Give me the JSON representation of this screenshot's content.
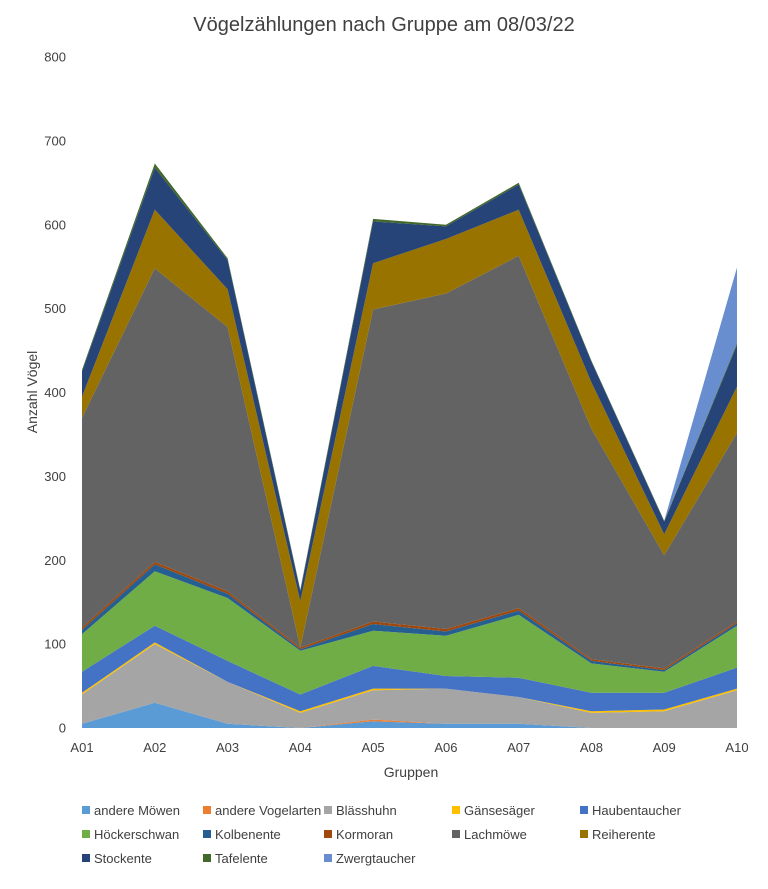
{
  "chart_data": {
    "type": "area",
    "stacked": true,
    "title": "Vögelzählungen nach Gruppe am 08/03/22",
    "xlabel": "Gruppen",
    "ylabel": "Anzahl Vögel",
    "ylim": [
      0,
      800
    ],
    "yticks": [
      "0",
      "100",
      "200",
      "300",
      "400",
      "500",
      "600",
      "700",
      "800"
    ],
    "categories": [
      "A01",
      "A02",
      "A03",
      "A04",
      "A05",
      "A06",
      "A07",
      "A08",
      "A09",
      "A10"
    ],
    "grid": false,
    "legend_position": "bottom",
    "series": [
      {
        "name": "andere Möwen",
        "color": "#5b9bd5",
        "values": [
          5,
          30,
          5,
          0,
          8,
          5,
          5,
          0,
          0,
          0
        ]
      },
      {
        "name": "andere Vogelarten",
        "color": "#ed7d31",
        "values": [
          0,
          0,
          0,
          0,
          2,
          0,
          0,
          0,
          0,
          0
        ]
      },
      {
        "name": "Blässhuhn",
        "color": "#a5a5a5",
        "values": [
          35,
          70,
          50,
          18,
          35,
          42,
          32,
          18,
          20,
          45
        ]
      },
      {
        "name": "Gänsesäger",
        "color": "#ffc000",
        "values": [
          2,
          2,
          0,
          2,
          2,
          0,
          0,
          2,
          2,
          2
        ]
      },
      {
        "name": "Haubentaucher",
        "color": "#4472c4",
        "values": [
          25,
          20,
          25,
          20,
          27,
          15,
          23,
          22,
          20,
          25
        ]
      },
      {
        "name": "Höckerschwan",
        "color": "#70ad47",
        "values": [
          45,
          65,
          75,
          52,
          42,
          48,
          75,
          35,
          25,
          50
        ]
      },
      {
        "name": "Kolbenente",
        "color": "#255e91",
        "values": [
          5,
          8,
          5,
          2,
          8,
          5,
          5,
          3,
          2,
          3
        ]
      },
      {
        "name": "Kormoran",
        "color": "#9e480e",
        "values": [
          3,
          3,
          3,
          2,
          3,
          3,
          3,
          2,
          2,
          2
        ]
      },
      {
        "name": "Lachmöwe",
        "color": "#636363",
        "values": [
          250,
          350,
          315,
          0,
          372,
          400,
          420,
          275,
          135,
          225
        ]
      },
      {
        "name": "Reiherente",
        "color": "#997300",
        "values": [
          25,
          70,
          45,
          55,
          55,
          65,
          55,
          55,
          25,
          55
        ]
      },
      {
        "name": "Stockente",
        "color": "#264478",
        "values": [
          30,
          50,
          35,
          12,
          50,
          15,
          30,
          25,
          15,
          50
        ]
      },
      {
        "name": "Tafelente",
        "color": "#43682b",
        "values": [
          2,
          5,
          2,
          2,
          3,
          2,
          2,
          1,
          1,
          2
        ]
      },
      {
        "name": "Zwergtaucher",
        "color": "#698ed0",
        "values": [
          0,
          0,
          0,
          0,
          0,
          0,
          0,
          0,
          0,
          90
        ]
      }
    ]
  }
}
